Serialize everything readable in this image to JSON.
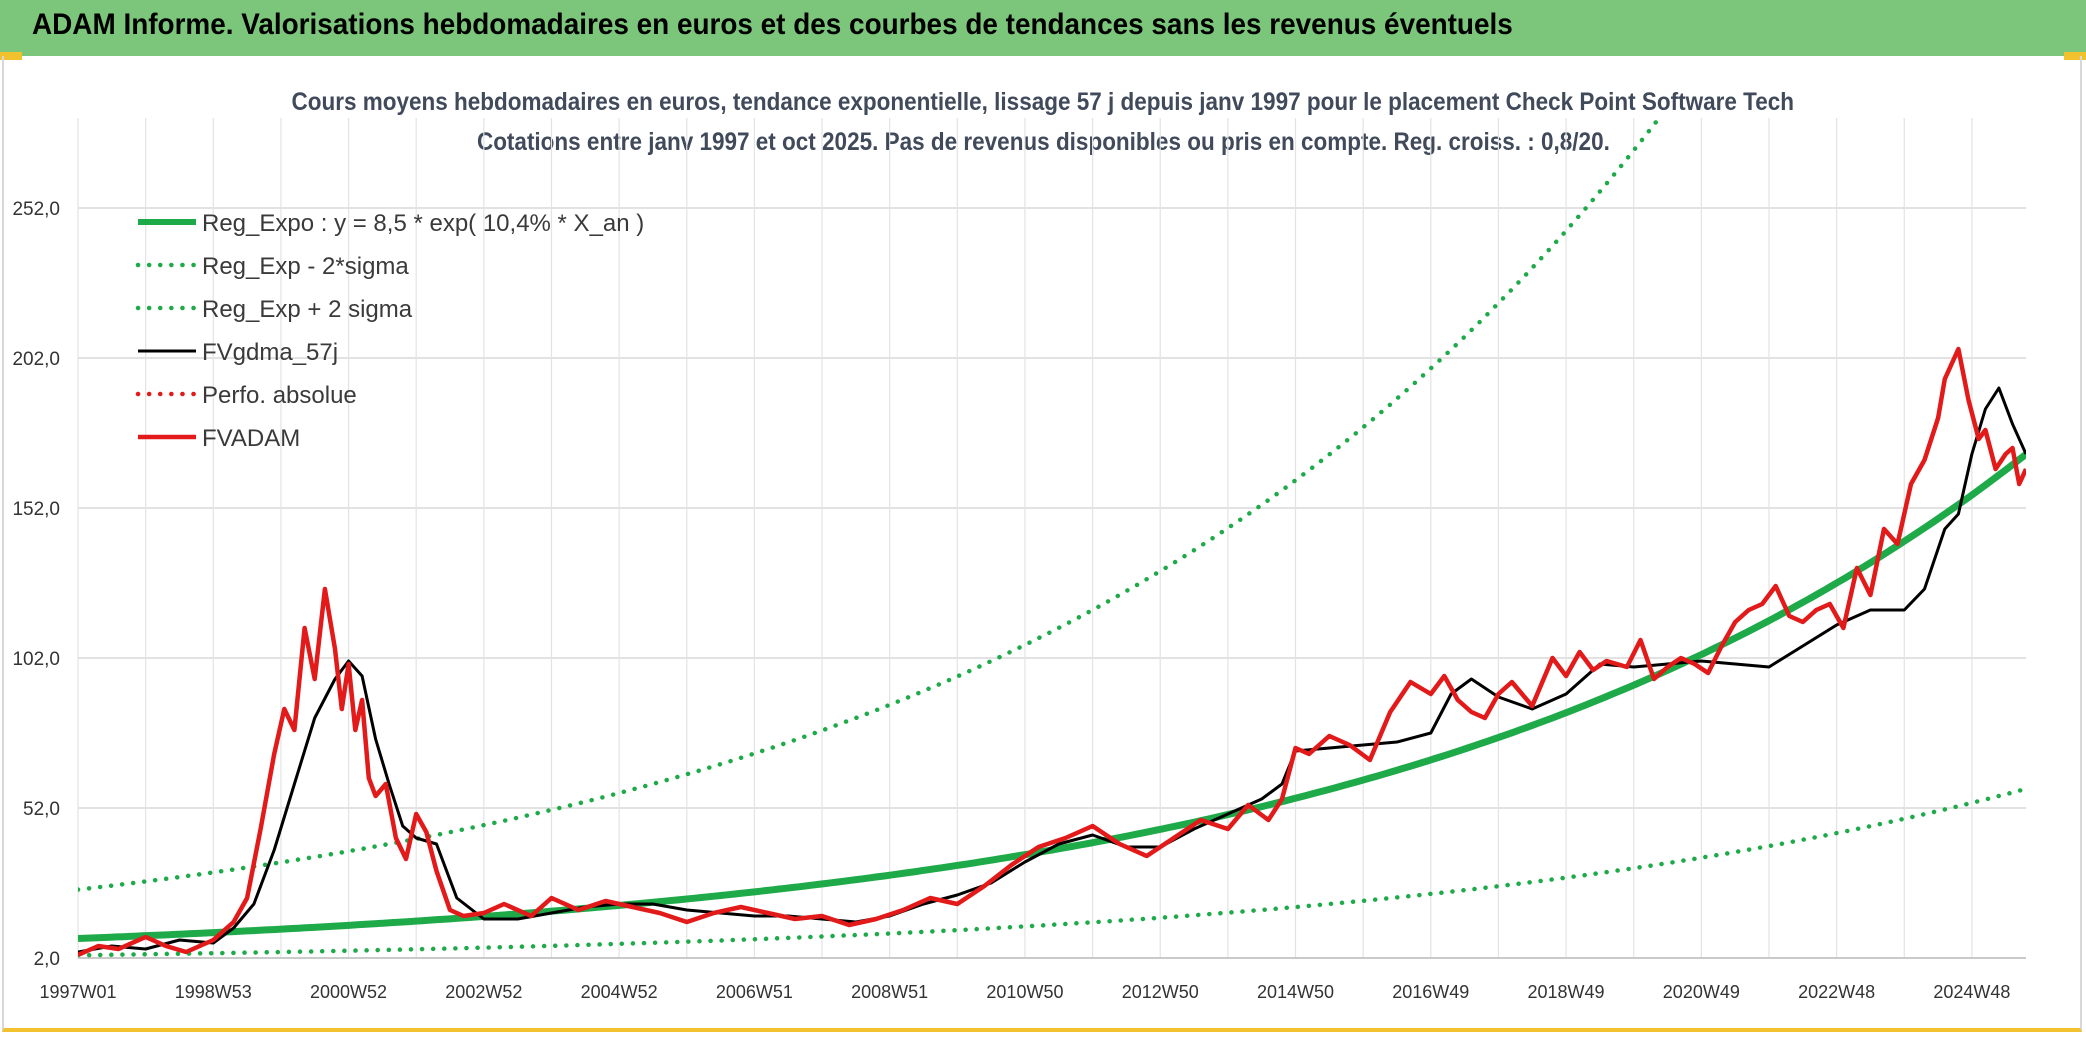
{
  "header": {
    "title": "ADAM Informe. Valorisations hebdomadaires en euros et des courbes de tendances sans les revenus éventuels"
  },
  "chart_data": {
    "type": "line",
    "title": "Cours moyens hebdomadaires en euros, tendance exponentielle, lissage 57 j depuis janv 1997 pour le placement Check Point Software Tech",
    "subtitle": "Cotations entre janv 1997 et oct 2025. Pas de revenus disponibles ou pris en compte. Reg. croiss. : 0,8/20.",
    "xlabel": "",
    "ylabel": "",
    "ylim": [
      2,
      280
    ],
    "xlim": [
      1997.0,
      2025.8
    ],
    "y_ticks": [
      "2,0",
      "52,0",
      "102,0",
      "152,0",
      "202,0",
      "252,0"
    ],
    "x_ticks": [
      {
        "label": "1997W01",
        "x": 1997.0
      },
      {
        "label": "1998W53",
        "x": 1999.0
      },
      {
        "label": "2000W52",
        "x": 2001.0
      },
      {
        "label": "2002W52",
        "x": 2003.0
      },
      {
        "label": "2004W52",
        "x": 2005.0
      },
      {
        "label": "2006W51",
        "x": 2007.0
      },
      {
        "label": "2008W51",
        "x": 2009.0
      },
      {
        "label": "2010W50",
        "x": 2011.0
      },
      {
        "label": "2012W50",
        "x": 2013.0
      },
      {
        "label": "2014W50",
        "x": 2015.0
      },
      {
        "label": "2016W49",
        "x": 2017.0
      },
      {
        "label": "2018W49",
        "x": 2019.0
      },
      {
        "label": "2020W49",
        "x": 2021.0
      },
      {
        "label": "2022W48",
        "x": 2023.0
      },
      {
        "label": "2024W48",
        "x": 2025.0
      }
    ],
    "grid": true,
    "legend_position": "top-left",
    "series": [
      {
        "name": "Reg_Expo : y = 8,5 * exp( 10,4% *  X_an )",
        "color": "#1faa4a",
        "style": "solid-thick",
        "kind": "exp",
        "a": 8.5,
        "rate": 0.104
      },
      {
        "name": "Reg_Exp - 2*sigma",
        "color": "#1faa4a",
        "style": "dotted",
        "kind": "exp",
        "a": 2.92,
        "rate": 0.104
      },
      {
        "name": "Reg_Exp + 2 sigma",
        "color": "#1faa4a",
        "style": "dotted",
        "kind": "exp",
        "a": 24.8,
        "rate": 0.104
      },
      {
        "name": "FVgdma_57j",
        "color": "#000000",
        "style": "solid",
        "x": [
          1997.0,
          1997.5,
          1998.0,
          1998.5,
          1999.0,
          1999.3,
          1999.6,
          1999.9,
          2000.2,
          2000.5,
          2000.8,
          2001.0,
          2001.2,
          2001.4,
          2001.6,
          2001.8,
          2002.0,
          2002.3,
          2002.6,
          2003.0,
          2003.5,
          2004.0,
          2004.5,
          2005.0,
          2005.5,
          2006.0,
          2006.5,
          2007.0,
          2007.5,
          2008.0,
          2008.5,
          2009.0,
          2009.5,
          2010.0,
          2010.5,
          2011.0,
          2011.5,
          2012.0,
          2012.5,
          2013.0,
          2013.5,
          2014.0,
          2014.5,
          2014.8,
          2015.0,
          2015.5,
          2016.0,
          2016.5,
          2017.0,
          2017.3,
          2017.6,
          2018.0,
          2018.5,
          2019.0,
          2019.5,
          2020.0,
          2020.5,
          2021.0,
          2021.5,
          2022.0,
          2022.5,
          2023.0,
          2023.5,
          2024.0,
          2024.3,
          2024.6,
          2024.8,
          2025.0,
          2025.2,
          2025.4,
          2025.6,
          2025.8
        ],
        "y": [
          4,
          6,
          5,
          8,
          7,
          12,
          20,
          38,
          60,
          82,
          95,
          101,
          96,
          75,
          60,
          46,
          42,
          40,
          22,
          15,
          15,
          17,
          19,
          20,
          20,
          18,
          17,
          16,
          16,
          15,
          14,
          16,
          20,
          23,
          27,
          34,
          40,
          43,
          39,
          39,
          45,
          50,
          55,
          60,
          71,
          72,
          73,
          74,
          77,
          90,
          95,
          89,
          85,
          90,
          100,
          99,
          100,
          101,
          100,
          99,
          106,
          113,
          118,
          118,
          125,
          145,
          150,
          170,
          185,
          192,
          180,
          170
        ]
      },
      {
        "name": "Perfo. absolue",
        "color": "#e21a1a",
        "style": "dotted"
      },
      {
        "name": "FVADAM",
        "color": "#e21a1a",
        "style": "solid-thick",
        "x": [
          1997.0,
          1997.3,
          1997.6,
          1998.0,
          1998.3,
          1998.6,
          1999.0,
          1999.3,
          1999.5,
          1999.7,
          1999.9,
          2000.05,
          2000.2,
          2000.35,
          2000.5,
          2000.65,
          2000.8,
          2000.9,
          2001.0,
          2001.1,
          2001.2,
          2001.3,
          2001.4,
          2001.55,
          2001.7,
          2001.85,
          2002.0,
          2002.15,
          2002.3,
          2002.5,
          2002.7,
          2003.0,
          2003.3,
          2003.7,
          2004.0,
          2004.4,
          2004.8,
          2005.2,
          2005.6,
          2006.0,
          2006.4,
          2006.8,
          2007.2,
          2007.6,
          2008.0,
          2008.4,
          2008.8,
          2009.2,
          2009.6,
          2010.0,
          2010.4,
          2010.8,
          2011.2,
          2011.6,
          2012.0,
          2012.4,
          2012.8,
          2013.2,
          2013.6,
          2014.0,
          2014.3,
          2014.6,
          2014.8,
          2015.0,
          2015.2,
          2015.5,
          2015.8,
          2016.1,
          2016.4,
          2016.7,
          2017.0,
          2017.2,
          2017.4,
          2017.6,
          2017.8,
          2018.0,
          2018.2,
          2018.5,
          2018.8,
          2019.0,
          2019.2,
          2019.4,
          2019.6,
          2019.9,
          2020.1,
          2020.3,
          2020.5,
          2020.7,
          2020.9,
          2021.1,
          2021.3,
          2021.5,
          2021.7,
          2021.9,
          2022.1,
          2022.3,
          2022.5,
          2022.7,
          2022.9,
          2023.1,
          2023.3,
          2023.5,
          2023.7,
          2023.9,
          2024.1,
          2024.3,
          2024.5,
          2024.6,
          2024.8,
          2024.95,
          2025.1,
          2025.2,
          2025.35,
          2025.5,
          2025.6,
          2025.7,
          2025.8
        ],
        "y": [
          3,
          6,
          5,
          9,
          6,
          4,
          8,
          14,
          22,
          45,
          70,
          85,
          78,
          112,
          95,
          125,
          105,
          85,
          100,
          78,
          88,
          62,
          56,
          60,
          42,
          35,
          50,
          44,
          31,
          18,
          16,
          17,
          20,
          16,
          22,
          18,
          21,
          19,
          17,
          14,
          17,
          19,
          17,
          15,
          16,
          13,
          15,
          18,
          22,
          20,
          26,
          33,
          39,
          42,
          46,
          40,
          36,
          42,
          48,
          45,
          53,
          48,
          55,
          72,
          70,
          76,
          73,
          68,
          84,
          94,
          90,
          96,
          88,
          84,
          82,
          90,
          94,
          86,
          102,
          96,
          104,
          98,
          101,
          99,
          108,
          95,
          99,
          102,
          100,
          97,
          106,
          114,
          118,
          120,
          126,
          116,
          114,
          118,
          120,
          112,
          132,
          123,
          145,
          140,
          160,
          168,
          182,
          195,
          205,
          188,
          175,
          178,
          165,
          170,
          172,
          160,
          165
        ]
      }
    ]
  }
}
